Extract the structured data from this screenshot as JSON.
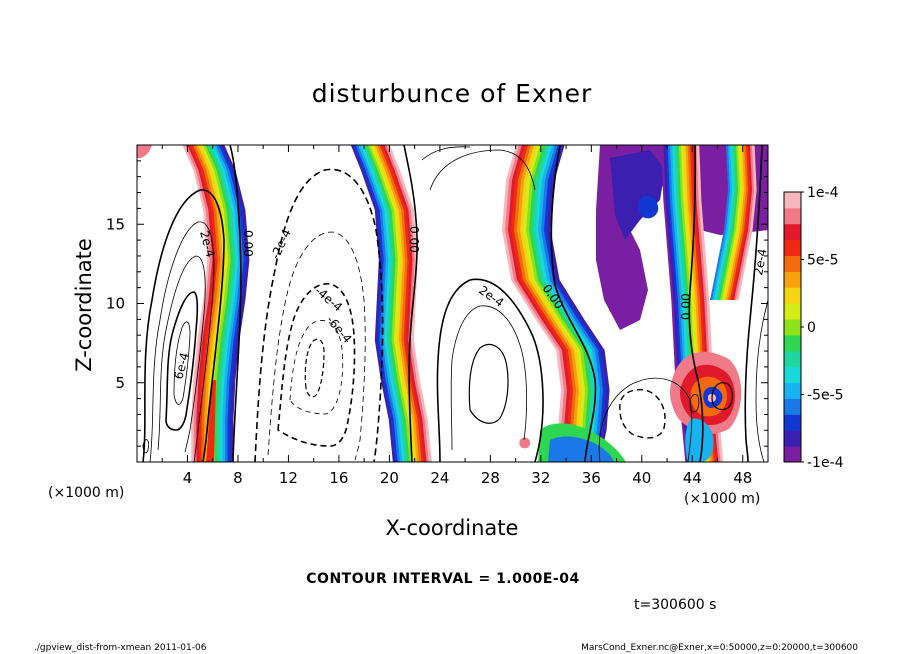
{
  "chart_data": {
    "type": "heatmap",
    "title": "disturbunce of Exner",
    "xlabel": "X-coordinate",
    "ylabel": "Z-coordinate",
    "x_unit": "(×1000 m)",
    "y_unit": "(×1000 m)",
    "xlim": [
      0,
      50
    ],
    "ylim": [
      0,
      20
    ],
    "x_ticks": [
      "4",
      "8",
      "12",
      "16",
      "20",
      "24",
      "28",
      "32",
      "36",
      "40",
      "44",
      "48"
    ],
    "x_tick_values": [
      4,
      8,
      12,
      16,
      20,
      24,
      28,
      32,
      36,
      40,
      44,
      48
    ],
    "y_ticks": [
      "5",
      "10",
      "15"
    ],
    "y_tick_values": [
      5,
      10,
      15
    ],
    "colorbar": {
      "range": [
        -0.0001,
        0.0001
      ],
      "labels": [
        "1e-4",
        "5e-5",
        "0",
        "-5e-5",
        "-1e-4"
      ],
      "label_values": [
        0.0001,
        5e-05,
        0,
        -5e-05,
        -0.0001
      ],
      "colors": [
        "#7b1fa2",
        "#3a1fb0",
        "#1238d4",
        "#1a78e8",
        "#18b2f0",
        "#17d9d9",
        "#1ed6a0",
        "#2ed651",
        "#8ee21a",
        "#d6ec18",
        "#f5d511",
        "#f8a20e",
        "#f56a0c",
        "#ee2b12",
        "#e01a2a",
        "#f07a88",
        "#f7b7bd"
      ]
    },
    "contour_labels": [
      "2e-4",
      "0.00",
      "-2e-4",
      "-4e-4",
      "-6e-4",
      "0.00",
      "2e-4",
      "0.00",
      "0.00",
      "6e-4",
      "2e-4"
    ],
    "contour_interval_text": "CONTOUR INTERVAL = 1.000E-04",
    "time_text": "t=300600 s",
    "footer_left": "./gpview_dist-from-xmean  2011-01-06",
    "footer_right": "MarsCond_Exner.nc@Exner,x=0:50000,z=0:20000,t=300600"
  }
}
